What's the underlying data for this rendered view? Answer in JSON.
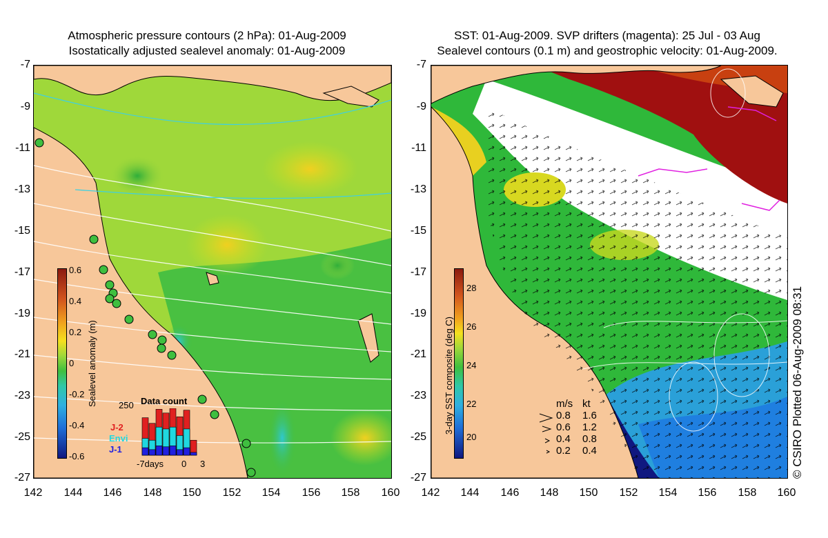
{
  "left_panel": {
    "title_line1": "Atmospheric pressure contours (2 hPa): 01-Aug-2009",
    "title_line2": "Isostatically adjusted sealevel anomaly: 01-Aug-2009",
    "y_ticks": [
      "-7",
      "-9",
      "-11",
      "-13",
      "-15",
      "-17",
      "-19",
      "-21",
      "-23",
      "-25",
      "-27"
    ],
    "x_ticks": [
      "142",
      "144",
      "146",
      "148",
      "150",
      "152",
      "154",
      "156",
      "158",
      "160"
    ],
    "colorbar": {
      "title": "Sealevel anomaly (m)",
      "labels": [
        "0.6",
        "0.4",
        "0.2",
        "0",
        "-0.2",
        "-0.4",
        "-0.6"
      ]
    },
    "data_count": {
      "title": "Data count",
      "max_label": "250",
      "series_j2": "J-2",
      "series_envi": "Envi",
      "series_j1": "J-1",
      "x_label_start": "-7days",
      "x_label_zero": "0",
      "x_label_end": "3",
      "bars_total": [
        200,
        170,
        245,
        225,
        250,
        205,
        240,
        80
      ],
      "bars_envi": [
        90,
        80,
        150,
        140,
        150,
        105,
        140,
        0
      ],
      "bars_j1": [
        40,
        30,
        50,
        45,
        50,
        30,
        40,
        15
      ]
    }
  },
  "right_panel": {
    "title_line1": "SST: 01-Aug-2009. SVP drifters (magenta): 25 Jul - 03 Aug",
    "title_line2": "Sealevel contours (0.1 m) and geostrophic velocity: 01-Aug-2009.",
    "y_ticks": [
      "-7",
      "-9",
      "-11",
      "-13",
      "-15",
      "-17",
      "-19",
      "-21",
      "-23",
      "-25",
      "-27"
    ],
    "x_ticks": [
      "142",
      "144",
      "146",
      "148",
      "150",
      "152",
      "154",
      "156",
      "158",
      "160"
    ],
    "colorbar": {
      "title": "3-day SST composite (deg C)",
      "labels": [
        "28",
        "26",
        "24",
        "22",
        "20"
      ]
    },
    "velocity_legend": {
      "header_ms": "m/s",
      "header_kt": "kt",
      "rows": [
        {
          "ms": "0.8",
          "kt": "1.6"
        },
        {
          "ms": "0.6",
          "kt": "1.2"
        },
        {
          "ms": "0.4",
          "kt": "0.8"
        },
        {
          "ms": "0.2",
          "kt": "0.4"
        }
      ]
    }
  },
  "copyright": "© CSIRO Plotted 06-Aug-2009 08:31",
  "colors": {
    "land": "#f7c79a",
    "sla_green": "#3fbf3f",
    "sla_yellow": "#c9e021",
    "sst_red": "#a01010",
    "sst_green": "#2fb83a",
    "sst_blue": "#1f7fe0",
    "magenta": "#e020e0"
  }
}
